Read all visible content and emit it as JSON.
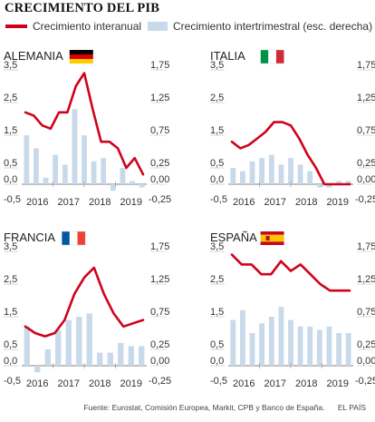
{
  "title": "CRECIMIENTO DEL PIB",
  "legend": {
    "line_label": "Crecimiento interanual",
    "bar_label": "Crecimiento intertrimestral (esc. derecha)"
  },
  "colors": {
    "line": "#d0021b",
    "bar": "#c8d9ea",
    "axis": "#888888",
    "grid_zero": "#555555"
  },
  "footer": {
    "source": "Fuente: Eurostat, Comisión Europea, Markit, CPB y Banco de España.",
    "brand": "EL PAÍS"
  },
  "chart_data": [
    {
      "type": "bar+line",
      "country": "ALEMANIA",
      "flag": "germany",
      "left_ticks": [
        "3,5",
        "2,5",
        "1,5",
        "0,5",
        "0,0"
      ],
      "right_ticks": [
        "1,75",
        "1,25",
        "0,75",
        "0,25",
        "0,00"
      ],
      "left_range": [
        0,
        3.5
      ],
      "right_range": [
        0,
        1.75
      ],
      "x_labels": [
        "2016",
        "2017",
        "2018",
        "2019"
      ],
      "bars": [
        0.75,
        0.55,
        0.1,
        0.45,
        0.3,
        1.15,
        0.75,
        0.35,
        0.4,
        -0.1,
        0.25,
        0.05,
        -0.05
      ],
      "line": [
        2.2,
        2.1,
        1.8,
        1.7,
        2.2,
        2.2,
        3.0,
        3.4,
        2.3,
        1.3,
        1.3,
        1.1,
        0.5,
        0.8,
        0.3
      ]
    },
    {
      "type": "bar+line",
      "country": "ITALIA",
      "flag": "italy",
      "left_ticks": [
        "3,5",
        "2,5",
        "1,5",
        "0,5",
        "0,0"
      ],
      "right_ticks": [
        "1,75",
        "1,25",
        "0,75",
        "0,25",
        "0,00"
      ],
      "left_range": [
        0,
        3.5
      ],
      "right_range": [
        0,
        1.75
      ],
      "x_labels": [
        "2016",
        "2017",
        "2018",
        "2019"
      ],
      "bars": [
        0.25,
        0.2,
        0.35,
        0.4,
        0.45,
        0.3,
        0.4,
        0.3,
        0.2,
        -0.05,
        -0.05,
        0.05,
        0.05
      ],
      "line": [
        1.3,
        1.1,
        1.2,
        1.4,
        1.6,
        1.9,
        1.9,
        1.8,
        1.4,
        0.9,
        0.5,
        0.0,
        0.0,
        0.0,
        0.0
      ]
    },
    {
      "type": "bar+line",
      "country": "FRANCIA",
      "flag": "france",
      "left_ticks": [
        "3,5",
        "2,5",
        "1,5",
        "0,5",
        "0,0"
      ],
      "right_ticks": [
        "1,75",
        "1,25",
        "0,75",
        "0,25",
        "0,00"
      ],
      "left_range": [
        0,
        3.5
      ],
      "right_range": [
        0,
        1.75
      ],
      "x_labels": [
        "2016",
        "2017",
        "2018",
        "2019"
      ],
      "bars": [
        0.6,
        -0.1,
        0.25,
        0.55,
        0.7,
        0.75,
        0.8,
        0.2,
        0.2,
        0.35,
        0.3,
        0.3
      ],
      "line": [
        1.2,
        1.0,
        0.9,
        1.0,
        1.4,
        2.2,
        2.7,
        3.0,
        2.2,
        1.6,
        1.2,
        1.3,
        1.4
      ]
    },
    {
      "type": "bar+line",
      "country": "ESPAÑA",
      "flag": "spain",
      "left_ticks": [
        "3,5",
        "2,5",
        "1,5",
        "0,5",
        "0,0"
      ],
      "right_ticks": [
        "1,75",
        "1,25",
        "0,75",
        "0,25",
        "0,00"
      ],
      "left_range": [
        0,
        3.5
      ],
      "right_range": [
        0,
        1.75
      ],
      "x_labels": [
        "2016",
        "2017",
        "2018",
        "2019"
      ],
      "bars": [
        0.7,
        0.85,
        0.5,
        0.65,
        0.75,
        0.9,
        0.7,
        0.6,
        0.6,
        0.55,
        0.6,
        0.5,
        0.5
      ],
      "line": [
        3.4,
        3.1,
        3.1,
        2.8,
        2.8,
        3.2,
        2.9,
        3.1,
        2.8,
        2.5,
        2.3,
        2.3,
        2.3
      ]
    }
  ]
}
